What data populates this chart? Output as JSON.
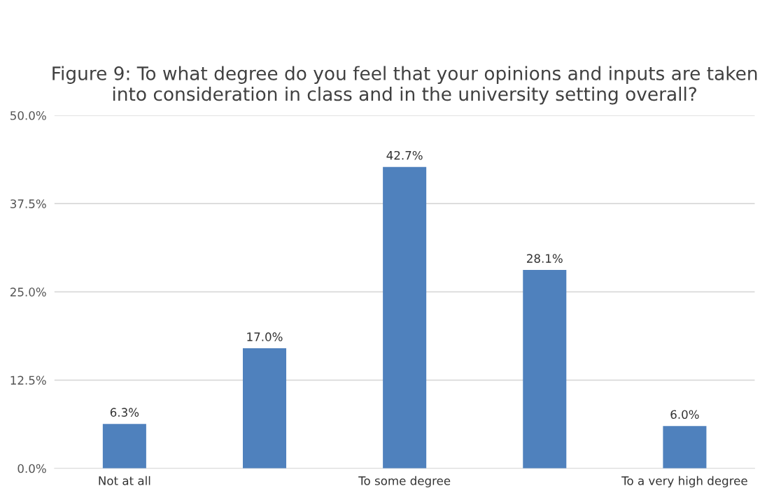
{
  "chart_data": {
    "type": "bar",
    "title": "Figure 9: To what degree do you feel that your opinions and inputs are taken into consideration in class and in the university setting overall?",
    "categories": [
      "Not at all",
      null,
      "To some degree",
      null,
      "To a very high degree"
    ],
    "values": [
      6.3,
      17.0,
      42.7,
      28.1,
      6.0
    ],
    "value_labels": [
      "6.3%",
      "17.0%",
      "42.7%",
      "28.1%",
      "6.0%"
    ],
    "color": "#4f81bd",
    "ylim": [
      0,
      50
    ],
    "yticks": [
      {
        "value": 0,
        "label": "0.0%"
      },
      {
        "value": 12.5,
        "label": "12.5%"
      },
      {
        "value": 25,
        "label": "25.0%"
      },
      {
        "value": 37.5,
        "label": "37.5%"
      },
      {
        "value": 50,
        "label": "50.0%"
      }
    ],
    "grid": "y",
    "legend": false
  }
}
